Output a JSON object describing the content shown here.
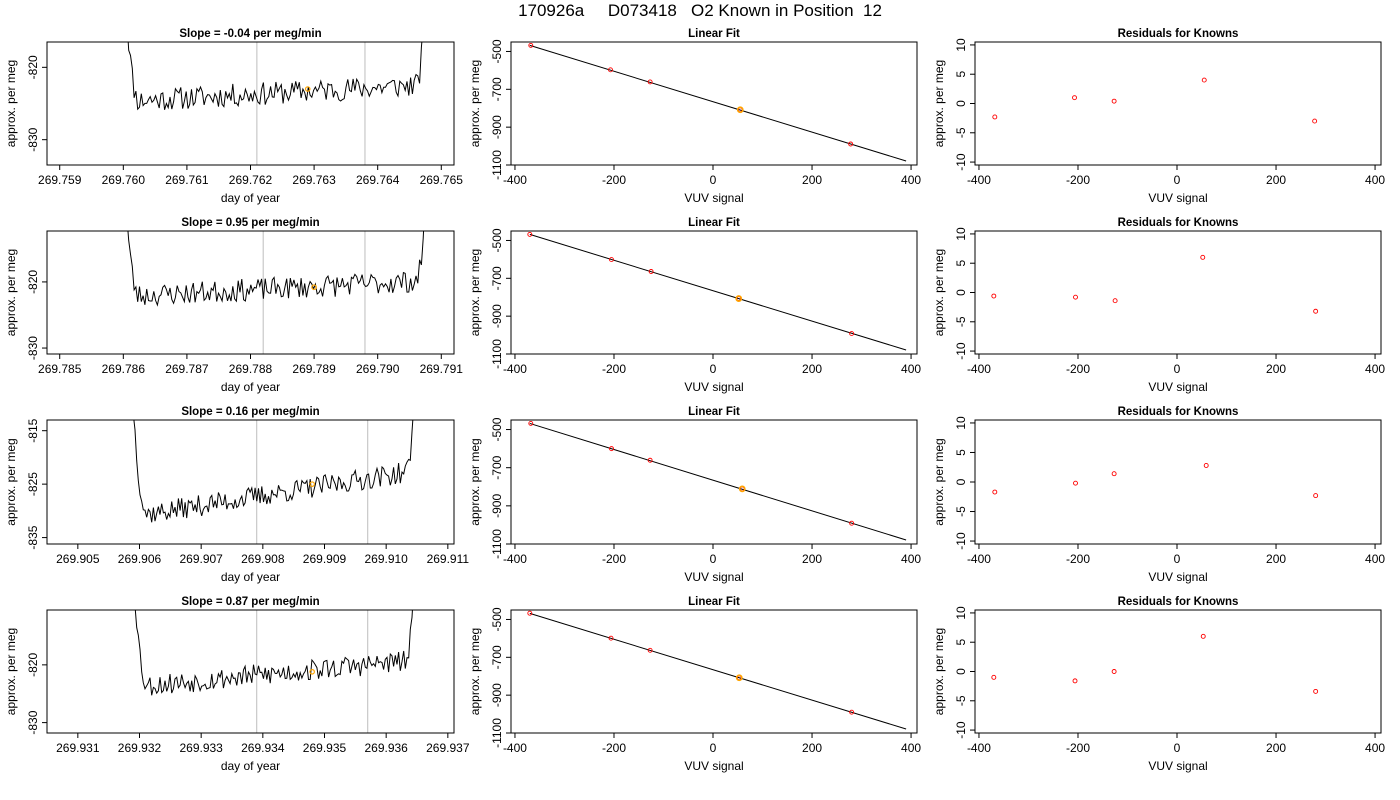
{
  "figure": {
    "title": "170926a     D073418   O2 Known in Position  12"
  },
  "colors": {
    "trace": "#000000",
    "known_marker": "#ff0000",
    "sample_marker": "#ffa500",
    "window_line": "#c8c8c8"
  },
  "chart_data": [
    {
      "type": "line",
      "row": 1,
      "col": 1,
      "title": "Slope =  -0.04  per meg/min",
      "xlabel": "day of year",
      "ylabel": "approx. per meg",
      "x_ticks": [
        "269.759",
        "269.760",
        "269.761",
        "269.762",
        "269.763",
        "269.764",
        "269.765"
      ],
      "y_ticks": [
        "-820",
        "-830"
      ],
      "xlim": [
        269.7588,
        269.7652
      ],
      "ylim": [
        -833.5,
        -816.5
      ],
      "window_lines": [
        269.7621,
        269.7638
      ],
      "series_seed": 11,
      "trace": {
        "x_start": 269.76,
        "x_end": 269.7648,
        "base_start": -824.7,
        "base_end": -822.4,
        "amplitude": 1.6
      },
      "marker": {
        "x": 269.7629,
        "y": -823.0
      }
    },
    {
      "type": "scatter",
      "row": 1,
      "col": 2,
      "title": "Linear Fit",
      "xlabel": "VUV signal",
      "ylabel": "approx. per meg",
      "x_ticks": [
        "-400",
        "-200",
        "0",
        "200",
        "400"
      ],
      "y_ticks": [
        "-500",
        "-700",
        "-900",
        "-1100"
      ],
      "xlim": [
        -408,
        412
      ],
      "ylim": [
        -1100,
        -450
      ],
      "fit": {
        "x": [
          -370,
          390
        ],
        "y": [
          -468,
          -1079
        ]
      },
      "points": [
        {
          "x": -368,
          "y": -468
        },
        {
          "x": -207,
          "y": -597
        },
        {
          "x": -127,
          "y": -661
        },
        {
          "x": 55,
          "y": -808
        },
        {
          "x": 278,
          "y": -989
        }
      ],
      "highlight": {
        "x": 55,
        "y": -808
      }
    },
    {
      "type": "scatter",
      "row": 1,
      "col": 3,
      "title": "Residuals for Knowns",
      "xlabel": "VUV signal",
      "ylabel": "approx. per meg",
      "x_ticks": [
        "-400",
        "-200",
        "0",
        "200",
        "400"
      ],
      "y_ticks": [
        "10",
        "5",
        "0",
        "-5",
        "-10"
      ],
      "xlim": [
        -408,
        412
      ],
      "ylim": [
        -10.5,
        10.5
      ],
      "points": [
        {
          "x": -368,
          "y": -2.3
        },
        {
          "x": -207,
          "y": 1.0
        },
        {
          "x": -127,
          "y": 0.4
        },
        {
          "x": 55,
          "y": 4.0
        },
        {
          "x": 278,
          "y": -3.0
        }
      ]
    },
    {
      "type": "line",
      "row": 2,
      "col": 1,
      "title": "Slope =  0.95  per meg/min",
      "xlabel": "day of year",
      "ylabel": "approx. per meg",
      "x_ticks": [
        "269.785",
        "269.786",
        "269.787",
        "269.788",
        "269.789",
        "269.790",
        "269.791"
      ],
      "y_ticks": [
        "-820",
        "-830"
      ],
      "xlim": [
        269.7848,
        269.7912
      ],
      "ylim": [
        -830.9,
        -812.3
      ],
      "window_lines": [
        269.7882,
        269.7898
      ],
      "series_seed": 23,
      "trace": {
        "x_start": 269.786,
        "x_end": 269.7908,
        "base_start": -822.2,
        "base_end": -819.8,
        "amplitude": 1.7
      },
      "marker": {
        "x": 269.789,
        "y": -820.8
      }
    },
    {
      "type": "scatter",
      "row": 2,
      "col": 2,
      "title": "Linear Fit",
      "xlabel": "VUV signal",
      "ylabel": "approx. per meg",
      "x_ticks": [
        "-400",
        "-200",
        "0",
        "200",
        "400"
      ],
      "y_ticks": [
        "-500",
        "-700",
        "-900",
        "-1100"
      ],
      "xlim": [
        -408,
        412
      ],
      "ylim": [
        -1100,
        -450
      ],
      "fit": {
        "x": [
          -370,
          390
        ],
        "y": [
          -468,
          -1079
        ]
      },
      "points": [
        {
          "x": -370,
          "y": -468
        },
        {
          "x": -205,
          "y": -601
        },
        {
          "x": -125,
          "y": -664
        },
        {
          "x": 52,
          "y": -807
        },
        {
          "x": 280,
          "y": -992
        }
      ],
      "highlight": {
        "x": 52,
        "y": -807
      }
    },
    {
      "type": "scatter",
      "row": 2,
      "col": 3,
      "title": "Residuals for Knowns",
      "xlabel": "VUV signal",
      "ylabel": "approx. per meg",
      "x_ticks": [
        "-400",
        "-200",
        "0",
        "200",
        "400"
      ],
      "y_ticks": [
        "10",
        "5",
        "0",
        "-5",
        "-10"
      ],
      "xlim": [
        -408,
        412
      ],
      "ylim": [
        -10.5,
        10.5
      ],
      "points": [
        {
          "x": -370,
          "y": -0.6
        },
        {
          "x": -205,
          "y": -0.8
        },
        {
          "x": -125,
          "y": -1.4
        },
        {
          "x": 52,
          "y": 6.0
        },
        {
          "x": 280,
          "y": -3.2
        }
      ]
    },
    {
      "type": "line",
      "row": 3,
      "col": 1,
      "title": "Slope =  0.16  per meg/min",
      "xlabel": "day of year",
      "ylabel": "approx. per meg",
      "x_ticks": [
        "269.905",
        "269.906",
        "269.907",
        "269.908",
        "269.909",
        "269.910",
        "269.911"
      ],
      "y_ticks": [
        "-815",
        "-825",
        "-835"
      ],
      "xlim": [
        269.9045,
        269.9111
      ],
      "ylim": [
        -836.2,
        -813.0
      ],
      "window_lines": [
        269.9079,
        269.9097
      ],
      "series_seed": 37,
      "trace": {
        "x_start": 269.9059,
        "x_end": 269.9105,
        "base_start": -831.0,
        "base_end": -822.5,
        "amplitude": 2.0
      },
      "marker": {
        "x": 269.9088,
        "y": -825.0
      }
    },
    {
      "type": "scatter",
      "row": 3,
      "col": 2,
      "title": "Linear Fit",
      "xlabel": "VUV signal",
      "ylabel": "approx. per meg",
      "x_ticks": [
        "-400",
        "-200",
        "0",
        "200",
        "400"
      ],
      "y_ticks": [
        "-500",
        "-700",
        "-900",
        "-1100"
      ],
      "xlim": [
        -408,
        412
      ],
      "ylim": [
        -1100,
        -450
      ],
      "fit": {
        "x": [
          -370,
          390
        ],
        "y": [
          -468,
          -1079
        ]
      },
      "points": [
        {
          "x": -368,
          "y": -468
        },
        {
          "x": -205,
          "y": -600
        },
        {
          "x": -127,
          "y": -661
        },
        {
          "x": 59,
          "y": -811
        },
        {
          "x": 280,
          "y": -991
        }
      ],
      "highlight": {
        "x": 59,
        "y": -811
      }
    },
    {
      "type": "scatter",
      "row": 3,
      "col": 3,
      "title": "Residuals for Knowns",
      "xlabel": "VUV signal",
      "ylabel": "approx. per meg",
      "x_ticks": [
        "-400",
        "-200",
        "0",
        "200",
        "400"
      ],
      "y_ticks": [
        "10",
        "5",
        "0",
        "-5",
        "-10"
      ],
      "xlim": [
        -408,
        412
      ],
      "ylim": [
        -10.5,
        10.5
      ],
      "points": [
        {
          "x": -368,
          "y": -1.7
        },
        {
          "x": -205,
          "y": -0.2
        },
        {
          "x": -127,
          "y": 1.4
        },
        {
          "x": 59,
          "y": 2.8
        },
        {
          "x": 280,
          "y": -2.3
        }
      ]
    },
    {
      "type": "line",
      "row": 4,
      "col": 1,
      "title": "Slope =  0.87  per meg/min",
      "xlabel": "day of year",
      "ylabel": "approx. per meg",
      "x_ticks": [
        "269.931",
        "269.932",
        "269.933",
        "269.934",
        "269.935",
        "269.936",
        "269.937"
      ],
      "y_ticks": [
        "-820",
        "-830"
      ],
      "xlim": [
        269.9305,
        269.9371
      ],
      "ylim": [
        -831.8,
        -810.5
      ],
      "window_lines": [
        269.9339,
        269.9357
      ],
      "series_seed": 53,
      "trace": {
        "x_start": 269.9319,
        "x_end": 269.9365,
        "base_start": -823.8,
        "base_end": -819.2,
        "amplitude": 1.9
      },
      "marker": {
        "x": 269.9348,
        "y": -821.2
      }
    },
    {
      "type": "scatter",
      "row": 4,
      "col": 2,
      "title": "Linear Fit",
      "xlabel": "VUV signal",
      "ylabel": "approx. per meg",
      "x_ticks": [
        "-400",
        "-200",
        "0",
        "200",
        "400"
      ],
      "y_ticks": [
        "-500",
        "-700",
        "-900",
        "-1100"
      ],
      "xlim": [
        -408,
        412
      ],
      "ylim": [
        -1100,
        -450
      ],
      "fit": {
        "x": [
          -370,
          390
        ],
        "y": [
          -468,
          -1079
        ]
      },
      "points": [
        {
          "x": -370,
          "y": -467
        },
        {
          "x": -206,
          "y": -599
        },
        {
          "x": -127,
          "y": -663
        },
        {
          "x": 53,
          "y": -808
        },
        {
          "x": 280,
          "y": -990
        }
      ],
      "highlight": {
        "x": 53,
        "y": -808
      }
    },
    {
      "type": "scatter",
      "row": 4,
      "col": 3,
      "title": "Residuals for Knowns",
      "xlabel": "VUV signal",
      "ylabel": "approx. per meg",
      "x_ticks": [
        "-400",
        "-200",
        "0",
        "200",
        "400"
      ],
      "y_ticks": [
        "10",
        "5",
        "0",
        "-5",
        "-10"
      ],
      "xlim": [
        -408,
        412
      ],
      "ylim": [
        -10.5,
        10.5
      ],
      "points": [
        {
          "x": -370,
          "y": -1.0
        },
        {
          "x": -206,
          "y": -1.6
        },
        {
          "x": -127,
          "y": 0.0
        },
        {
          "x": 53,
          "y": 6.0
        },
        {
          "x": 280,
          "y": -3.4
        }
      ]
    }
  ]
}
